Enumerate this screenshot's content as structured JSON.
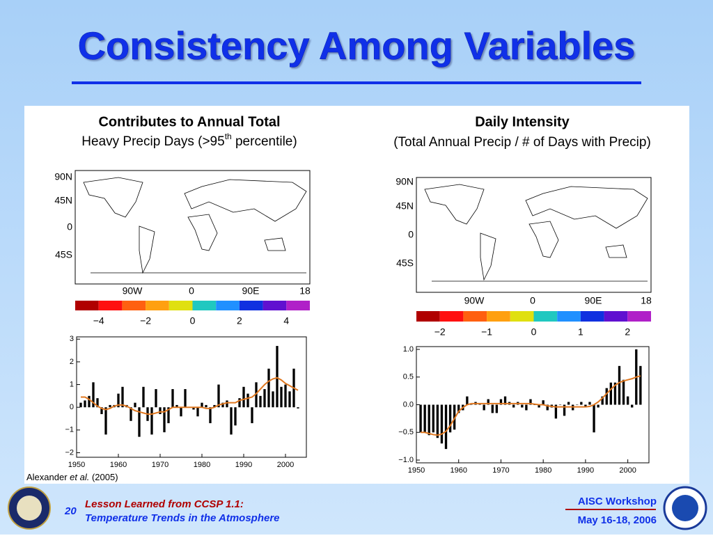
{
  "title": "Consistency Among Variables",
  "panels": [
    {
      "heading": "Contributes to Annual Total",
      "subheading": [
        "Heavy Precip Days (>95",
        "th",
        " percentile)"
      ],
      "map_lat_labels": [
        "90N",
        "45N",
        "0",
        "45S"
      ],
      "map_lon_labels": [
        "90W",
        "0",
        "90E",
        "18"
      ],
      "colorbar": {
        "colors": [
          "#b00000",
          "#ff1010",
          "#ff6010",
          "#ffa010",
          "#e0e010",
          "#20c8c0",
          "#2090ff",
          "#1030e0",
          "#6010d0",
          "#b020c8"
        ],
        "lim": [
          -5,
          5
        ],
        "ticks": [
          {
            "value": -4,
            "label": "−4"
          },
          {
            "value": -2,
            "label": "−2"
          },
          0,
          2,
          4
        ]
      },
      "chart": {
        "type": "bar",
        "x": [
          1951,
          1952,
          1953,
          1954,
          1955,
          1956,
          1957,
          1958,
          1959,
          1960,
          1961,
          1962,
          1963,
          1964,
          1965,
          1966,
          1967,
          1968,
          1969,
          1970,
          1971,
          1972,
          1973,
          1974,
          1975,
          1976,
          1977,
          1978,
          1979,
          1980,
          1981,
          1982,
          1983,
          1984,
          1985,
          1986,
          1987,
          1988,
          1989,
          1990,
          1991,
          1992,
          1993,
          1994,
          1995,
          1996,
          1997,
          1998,
          1999,
          2000,
          2001,
          2002,
          2003
        ],
        "series": [
          {
            "kind": "bar",
            "color": "#000000",
            "values": [
              0.2,
              0.3,
              0.5,
              1.1,
              0.4,
              -0.3,
              -1.2,
              0.1,
              0.1,
              0.6,
              0.9,
              0.1,
              -0.6,
              0.2,
              -1.3,
              0.9,
              -0.6,
              -1.2,
              0.8,
              -0.3,
              -1.1,
              -0.7,
              0.8,
              0.1,
              -0.4,
              0.8,
              0.0,
              -0.1,
              -0.4,
              0.2,
              0.1,
              -0.7,
              0.1,
              1.0,
              0.2,
              0.3,
              -1.2,
              -0.8,
              0.4,
              0.9,
              0.6,
              -0.7,
              1.1,
              0.5,
              0.8,
              1.7,
              0.7,
              2.7,
              0.9,
              1.0,
              0.7,
              1.7,
              -0.05
            ]
          },
          {
            "kind": "line",
            "color": "#e07820",
            "values": [
              0.45,
              0.45,
              0.35,
              0.2,
              0.05,
              -0.05,
              -0.1,
              -0.05,
              0.05,
              0.1,
              0.1,
              0.05,
              -0.05,
              -0.15,
              -0.2,
              -0.25,
              -0.3,
              -0.3,
              -0.25,
              -0.2,
              -0.2,
              -0.1,
              0,
              0,
              0,
              0,
              0,
              0,
              0,
              0,
              -0.05,
              -0.05,
              0,
              0.1,
              0.15,
              0.2,
              0.2,
              0.2,
              0.3,
              0.35,
              0.4,
              0.45,
              0.6,
              0.8,
              1.0,
              1.15,
              1.25,
              1.3,
              1.2,
              1.05,
              0.95,
              0.85,
              0.75
            ]
          }
        ],
        "xlim": [
          1950,
          2005
        ],
        "xticks": [
          1950,
          1960,
          1970,
          1980,
          1990,
          2000
        ],
        "ylim": [
          -2.2,
          3.1
        ],
        "yticks": [
          {
            "value": -2,
            "label": "−2"
          },
          {
            "value": -1,
            "label": "−1"
          },
          0,
          1,
          2,
          3
        ]
      }
    },
    {
      "heading": "Daily Intensity",
      "subheading": [
        "(Total Annual Precip / # of Days with Precip)"
      ],
      "map_lat_labels": [
        "90N",
        "45N",
        "0",
        "45S"
      ],
      "map_lon_labels": [
        "90W",
        "0",
        "90E",
        "18"
      ],
      "colorbar": {
        "colors": [
          "#b00000",
          "#ff1010",
          "#ff6010",
          "#ffa010",
          "#e0e010",
          "#20c8c0",
          "#2090ff",
          "#1030e0",
          "#6010d0",
          "#b020c8"
        ],
        "lim": [
          -2.5,
          2.5
        ],
        "ticks": [
          {
            "value": -2,
            "label": "−2"
          },
          {
            "value": -1,
            "label": "−1"
          },
          0,
          1,
          2
        ]
      },
      "chart": {
        "type": "bar",
        "x": [
          1951,
          1952,
          1953,
          1954,
          1955,
          1956,
          1957,
          1958,
          1959,
          1960,
          1961,
          1962,
          1963,
          1964,
          1965,
          1966,
          1967,
          1968,
          1969,
          1970,
          1971,
          1972,
          1973,
          1974,
          1975,
          1976,
          1977,
          1978,
          1979,
          1980,
          1981,
          1982,
          1983,
          1984,
          1985,
          1986,
          1987,
          1988,
          1989,
          1990,
          1991,
          1992,
          1993,
          1994,
          1995,
          1996,
          1997,
          1998,
          1999,
          2000,
          2001,
          2002,
          2003
        ],
        "series": [
          {
            "kind": "bar",
            "color": "#000000",
            "values": [
              -0.5,
              -0.5,
              -0.55,
              -0.5,
              -0.6,
              -0.7,
              -0.8,
              -0.5,
              -0.45,
              -0.15,
              -0.1,
              0.15,
              0,
              0.05,
              0.02,
              -0.1,
              0.1,
              -0.15,
              -0.15,
              0.1,
              0.15,
              0.05,
              -0.05,
              0.05,
              -0.05,
              -0.1,
              0.1,
              0,
              -0.05,
              0.08,
              -0.1,
              -0.05,
              -0.25,
              0,
              -0.2,
              0.05,
              -0.1,
              0,
              0.05,
              -0.05,
              0.05,
              -0.5,
              -0.05,
              0.15,
              0.3,
              0.4,
              0.4,
              0.7,
              0.45,
              0.15,
              -0.05,
              1.0,
              0.7
            ]
          },
          {
            "kind": "line",
            "color": "#e07820",
            "values": [
              -0.5,
              -0.5,
              -0.52,
              -0.54,
              -0.55,
              -0.53,
              -0.48,
              -0.38,
              -0.25,
              -0.12,
              -0.05,
              0,
              0.02,
              0.02,
              0.02,
              0.02,
              0.02,
              0.02,
              0.02,
              0.02,
              0.02,
              0.02,
              0.02,
              0.02,
              0.02,
              0.02,
              0.02,
              0.01,
              0,
              0,
              -0.02,
              -0.03,
              -0.04,
              -0.04,
              -0.04,
              -0.04,
              -0.04,
              -0.04,
              -0.04,
              -0.04,
              -0.03,
              0,
              0.05,
              0.12,
              0.2,
              0.28,
              0.35,
              0.4,
              0.43,
              0.45,
              0.47,
              0.5,
              0.52
            ]
          }
        ],
        "xlim": [
          1950,
          2005
        ],
        "xticks": [
          1950,
          1960,
          1970,
          1980,
          1990,
          2000
        ],
        "ylim": [
          -1.05,
          1.05
        ],
        "yticks": [
          {
            "value": -1,
            "label": "−1.0"
          },
          {
            "value": -0.5,
            "label": "−0.5"
          },
          {
            "value": 0,
            "label": "0.0"
          },
          {
            "value": 0.5,
            "label": "0.5"
          },
          {
            "value": 1,
            "label": "1.0"
          }
        ]
      }
    }
  ],
  "citation": [
    "Alexander ",
    "et al.",
    " (2005)"
  ],
  "footer": {
    "page_number": "20",
    "lesson": [
      "Lesson Learned from CCSP 1.1:",
      "Temperature Trends in the Atmosphere"
    ],
    "workshop": [
      "AISC Workshop",
      "May 16-18, 2006"
    ]
  }
}
